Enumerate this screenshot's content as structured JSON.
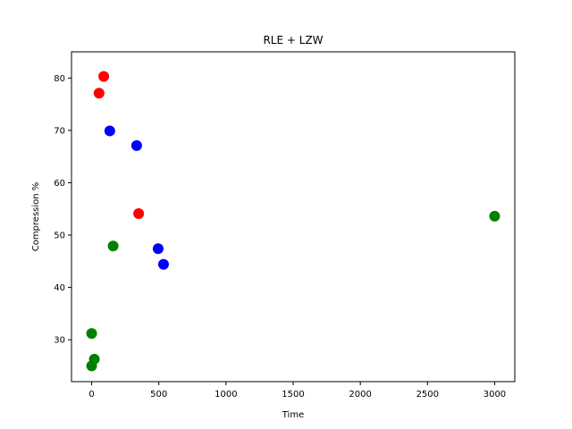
{
  "chart_data": {
    "type": "scatter",
    "title": "RLE + LZW",
    "xlabel": "Time",
    "ylabel": "Compression %",
    "xlim": [
      -150,
      3150
    ],
    "ylim": [
      22,
      85
    ],
    "xticks": [
      0,
      500,
      1000,
      1500,
      2000,
      2500,
      3000
    ],
    "yticks": [
      30,
      40,
      50,
      60,
      70,
      80
    ],
    "grid": false,
    "series": [
      {
        "color": "#ff0000",
        "points": [
          [
            90,
            80.3
          ],
          [
            55,
            77.1
          ],
          [
            350,
            54.1
          ]
        ]
      },
      {
        "color": "#0000ff",
        "points": [
          [
            135,
            69.9
          ],
          [
            335,
            67.1
          ],
          [
            495,
            47.4
          ],
          [
            535,
            44.4
          ]
        ]
      },
      {
        "color": "#008000",
        "points": [
          [
            3000,
            53.6
          ],
          [
            160,
            47.9
          ],
          [
            0,
            31.2
          ],
          [
            20,
            26.3
          ],
          [
            0,
            25.0
          ]
        ]
      }
    ]
  }
}
